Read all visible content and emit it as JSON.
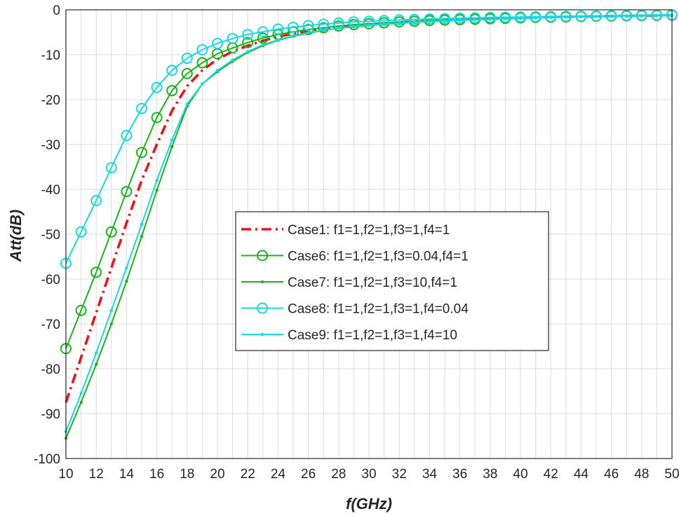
{
  "chart_data": {
    "type": "line",
    "title": "",
    "xlabel": "f(GHz)",
    "ylabel": "Att(dB)",
    "xlim": [
      10,
      50
    ],
    "ylim": [
      -100,
      0
    ],
    "grid": true,
    "legend_position": "center",
    "x_ticks": [
      "10",
      "12",
      "14",
      "16",
      "18",
      "20",
      "22",
      "24",
      "26",
      "28",
      "30",
      "32",
      "34",
      "36",
      "38",
      "40",
      "42",
      "44",
      "46",
      "48",
      "50"
    ],
    "y_ticks": [
      "0",
      "-10",
      "-20",
      "-30",
      "-40",
      "-50",
      "-60",
      "-70",
      "-80",
      "-90",
      "-100"
    ],
    "x": [
      10,
      11,
      12,
      13,
      14,
      15,
      16,
      17,
      18,
      19,
      20,
      21,
      22,
      23,
      24,
      25,
      26,
      27,
      28,
      29,
      30,
      31,
      32,
      33,
      34,
      35,
      36,
      37,
      38,
      39,
      40,
      41,
      42,
      43,
      44,
      45,
      46,
      47,
      48,
      49,
      50
    ],
    "series": [
      {
        "name": "Case1: f1=1,f2=1,f3=1,f4=1",
        "color": "#e8141a",
        "style": "dashdot",
        "marker": "none",
        "values": [
          -87.5,
          -77.5,
          -67.5,
          -57.5,
          -47.5,
          -38,
          -30,
          -22.5,
          -17,
          -13.5,
          -11,
          -9.3,
          -8,
          -6.9,
          -6,
          -5.3,
          -4.7,
          -4.2,
          -3.8,
          -3.5,
          -3.2,
          -3,
          -2.8,
          -2.6,
          -2.45,
          -2.3,
          -2.2,
          -2.1,
          -2,
          -1.9,
          -1.8,
          -1.7,
          -1.6,
          -1.55,
          -1.5,
          -1.45,
          -1.4,
          -1.35,
          -1.3,
          -1.25,
          -1.2
        ]
      },
      {
        "name": "Case6: f1=1,f2=1,f3=0.04,f4=1",
        "color": "#19b319",
        "style": "solid",
        "marker": "circle",
        "values": [
          -75.5,
          -67,
          -58.5,
          -49.5,
          -40.5,
          -31.8,
          -24,
          -18,
          -14.2,
          -11.8,
          -9.8,
          -8.5,
          -7.3,
          -6.3,
          -5.5,
          -4.9,
          -4.4,
          -4,
          -3.6,
          -3.3,
          -3.1,
          -2.9,
          -2.7,
          -2.55,
          -2.4,
          -2.3,
          -2.2,
          -2.1,
          -2,
          -1.9,
          -1.8,
          -1.7,
          -1.65,
          -1.6,
          -1.5,
          -1.45,
          -1.4,
          -1.35,
          -1.3,
          -1.25,
          -1.2
        ]
      },
      {
        "name": "Case7: f1=1,f2=1,f3=10,f4=1",
        "color": "#19b319",
        "style": "solid",
        "marker": "dot",
        "values": [
          -95.5,
          -87.5,
          -79,
          -70,
          -60.5,
          -50.5,
          -40.2,
          -30.5,
          -21.5,
          -16.5,
          -13.8,
          -11.5,
          -9.5,
          -8,
          -6.8,
          -5.9,
          -5.2,
          -4.6,
          -4.1,
          -3.8,
          -3.5,
          -3.2,
          -3,
          -2.8,
          -2.6,
          -2.5,
          -2.35,
          -2.2,
          -2.1,
          -2,
          -1.9,
          -1.8,
          -1.7,
          -1.6,
          -1.55,
          -1.5,
          -1.45,
          -1.4,
          -1.35,
          -1.3,
          -1.25
        ]
      },
      {
        "name": "Case8: f1=1,f2=1,f3=1,f4=0.04",
        "color": "#16d7e6",
        "style": "solid",
        "marker": "circle",
        "values": [
          -56.5,
          -49.5,
          -42.5,
          -35.2,
          -28,
          -22,
          -17.3,
          -13.5,
          -10.8,
          -8.9,
          -7.5,
          -6.4,
          -5.5,
          -4.9,
          -4.3,
          -3.9,
          -3.5,
          -3.2,
          -2.95,
          -2.7,
          -2.55,
          -2.4,
          -2.25,
          -2.15,
          -2.05,
          -1.95,
          -1.85,
          -1.8,
          -1.7,
          -1.65,
          -1.6,
          -1.55,
          -1.5,
          -1.45,
          -1.4,
          -1.35,
          -1.3,
          -1.25,
          -1.2,
          -1.15,
          -1.1
        ]
      },
      {
        "name": "Case9: f1=1,f2=1,f3=1,f4=10",
        "color": "#16d7e6",
        "style": "solid",
        "marker": "dot",
        "values": [
          -94,
          -85.5,
          -76.5,
          -67,
          -57.5,
          -47.8,
          -38,
          -29,
          -21,
          -16.5,
          -13.5,
          -11.2,
          -9.3,
          -7.8,
          -6.7,
          -5.8,
          -5.1,
          -4.5,
          -4.1,
          -3.7,
          -3.4,
          -3.15,
          -2.95,
          -2.75,
          -2.6,
          -2.45,
          -2.3,
          -2.2,
          -2.1,
          -2,
          -1.9,
          -1.8,
          -1.7,
          -1.6,
          -1.55,
          -1.5,
          -1.45,
          -1.4,
          -1.35,
          -1.3,
          -1.25
        ]
      }
    ]
  }
}
